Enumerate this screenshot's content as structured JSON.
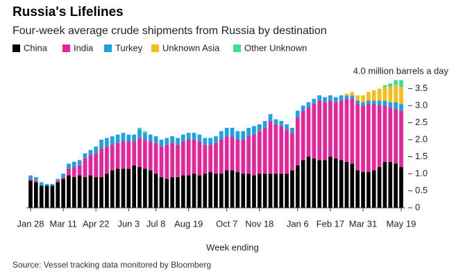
{
  "chart_data": {
    "type": "stacked_bar",
    "title": "Russia's Lifelines",
    "subtitle": "Four-week average crude shipments from Russia by destination",
    "x_label": "Week ending",
    "source": "Source: Vessel tracking data monitored by Bloomberg",
    "categories": [
      "Jan 28",
      null,
      null,
      null,
      null,
      null,
      "Mar 11",
      null,
      null,
      null,
      null,
      null,
      "Apr 22",
      null,
      null,
      null,
      null,
      null,
      "Jun 3",
      null,
      null,
      null,
      null,
      "Jul 8",
      null,
      null,
      null,
      null,
      null,
      "Aug 19",
      null,
      null,
      null,
      null,
      null,
      null,
      "Oct 7",
      null,
      null,
      null,
      null,
      null,
      "Nov 18",
      null,
      null,
      null,
      null,
      null,
      null,
      "Jan 6",
      null,
      null,
      null,
      null,
      null,
      "Feb 17",
      null,
      null,
      null,
      null,
      null,
      "Mar 31",
      null,
      null,
      null,
      null,
      null,
      null,
      "May 19"
    ],
    "series": [
      {
        "name": "China",
        "color": "#000000",
        "values": [
          0.8,
          0.75,
          0.65,
          0.65,
          0.65,
          0.75,
          0.85,
          0.95,
          0.9,
          0.95,
          0.9,
          0.95,
          0.9,
          0.9,
          1.0,
          1.1,
          1.15,
          1.15,
          1.15,
          1.25,
          1.2,
          1.15,
          1.1,
          1.0,
          0.9,
          0.85,
          0.9,
          0.9,
          0.95,
          0.95,
          1.0,
          0.95,
          1.0,
          1.05,
          1.0,
          1.0,
          1.1,
          1.1,
          1.05,
          1.0,
          1.0,
          0.95,
          1.0,
          1.0,
          1.0,
          1.0,
          1.0,
          1.0,
          1.1,
          1.25,
          1.4,
          1.5,
          1.45,
          1.4,
          1.4,
          1.5,
          1.45,
          1.4,
          1.35,
          1.3,
          1.1,
          1.05,
          1.05,
          1.1,
          1.2,
          1.35,
          1.35,
          1.3,
          1.2
        ]
      },
      {
        "name": "India",
        "color": "#e8239b",
        "values": [
          0.05,
          0.05,
          0,
          0,
          0,
          0.05,
          0.05,
          0.2,
          0.3,
          0.3,
          0.55,
          0.6,
          0.7,
          0.85,
          0.8,
          0.75,
          0.75,
          0.8,
          0.8,
          0.7,
          0.85,
          0.85,
          0.85,
          0.9,
          0.9,
          1.0,
          1.0,
          0.95,
          1.0,
          1.05,
          1.0,
          1.0,
          0.85,
          0.8,
          0.9,
          1.0,
          1.0,
          1.0,
          0.95,
          1.0,
          1.1,
          1.2,
          1.25,
          1.35,
          1.55,
          1.45,
          1.4,
          1.3,
          1.1,
          1.4,
          1.45,
          1.45,
          1.6,
          1.75,
          1.7,
          1.65,
          1.65,
          1.75,
          1.85,
          1.9,
          1.95,
          1.95,
          2.0,
          1.95,
          1.8,
          1.65,
          1.6,
          1.6,
          1.65
        ]
      },
      {
        "name": "Turkey",
        "color": "#1ea0e6",
        "values": [
          0.1,
          0.1,
          0.1,
          0.05,
          0.05,
          0.05,
          0.1,
          0.15,
          0.15,
          0.15,
          0.15,
          0.15,
          0.2,
          0.25,
          0.25,
          0.25,
          0.25,
          0.25,
          0.2,
          0.2,
          0.25,
          0.2,
          0.2,
          0.2,
          0.2,
          0.2,
          0.2,
          0.2,
          0.2,
          0.2,
          0.2,
          0.2,
          0.2,
          0.2,
          0.2,
          0.25,
          0.25,
          0.25,
          0.25,
          0.25,
          0.25,
          0.25,
          0.2,
          0.2,
          0.2,
          0.15,
          0.15,
          0.15,
          0.15,
          0.2,
          0.15,
          0.15,
          0.15,
          0.15,
          0.15,
          0.15,
          0.15,
          0.15,
          0.1,
          0.1,
          0.1,
          0.1,
          0.1,
          0.1,
          0.15,
          0.15,
          0.15,
          0.2,
          0.2
        ]
      },
      {
        "name": "Unknown Asia",
        "color": "#f5bd19",
        "values": [
          0,
          0,
          0,
          0,
          0,
          0,
          0,
          0,
          0,
          0,
          0,
          0,
          0,
          0,
          0,
          0,
          0,
          0,
          0,
          0,
          0,
          0,
          0,
          0,
          0,
          0,
          0,
          0,
          0,
          0,
          0,
          0,
          0,
          0,
          0,
          0,
          0,
          0,
          0,
          0,
          0,
          0,
          0,
          0,
          0,
          0,
          0,
          0,
          0,
          0,
          0,
          0,
          0,
          0,
          0,
          0,
          0,
          0,
          0.05,
          0.1,
          0.15,
          0.2,
          0.25,
          0.3,
          0.35,
          0.4,
          0.45,
          0.5,
          0.5
        ]
      },
      {
        "name": "Other Unknown",
        "color": "#3ee08f",
        "values": [
          0,
          0,
          0,
          0,
          0,
          0,
          0,
          0,
          0,
          0,
          0,
          0,
          0,
          0,
          0,
          0,
          0,
          0,
          0,
          0,
          0.05,
          0.05,
          0,
          0,
          0,
          0,
          0,
          0,
          0,
          0,
          0,
          0,
          0,
          0,
          0,
          0,
          0,
          0,
          0,
          0,
          0,
          0,
          0,
          0,
          0,
          0,
          0,
          0,
          0,
          0,
          0,
          0,
          0,
          0,
          0,
          0,
          0,
          0,
          0,
          0,
          0,
          0,
          0,
          0,
          0,
          0.05,
          0.1,
          0.15,
          0.2
        ]
      }
    ],
    "ylim": [
      0,
      4
    ],
    "yticks": [
      0,
      {
        "value": 0.5,
        "label": "0.5"
      },
      {
        "value": 1,
        "label": "1.0"
      },
      {
        "value": 1.5,
        "label": "1.5"
      },
      {
        "value": 2,
        "label": "2.0"
      },
      {
        "value": 2.5,
        "label": "2.5"
      },
      {
        "value": 3,
        "label": "3.0"
      },
      {
        "value": 3.5,
        "label": "3.5"
      },
      {
        "value": 4,
        "label": "4.0 million barrels a day"
      }
    ],
    "grid": false
  }
}
